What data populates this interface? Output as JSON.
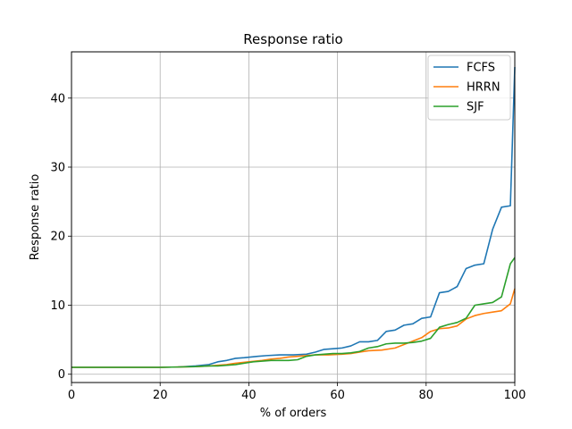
{
  "chart_data": {
    "type": "line",
    "title": "Response ratio",
    "xlabel": "% of orders",
    "ylabel": "Response ratio",
    "xlim": [
      0,
      100
    ],
    "ylim": [
      -1.2,
      46.7
    ],
    "xticks": [
      0,
      20,
      40,
      60,
      80,
      100
    ],
    "yticks": [
      0,
      10,
      20,
      30,
      40
    ],
    "grid": true,
    "legend_position": "top-right",
    "series": [
      {
        "name": "FCFS",
        "color": "#1f77b4",
        "points": [
          [
            0,
            1.0
          ],
          [
            10,
            1.0
          ],
          [
            20,
            1.0
          ],
          [
            24,
            1.05
          ],
          [
            28,
            1.2
          ],
          [
            31,
            1.4
          ],
          [
            33,
            1.8
          ],
          [
            35,
            2.0
          ],
          [
            37,
            2.3
          ],
          [
            39,
            2.4
          ],
          [
            42,
            2.6
          ],
          [
            44,
            2.7
          ],
          [
            47,
            2.8
          ],
          [
            50,
            2.8
          ],
          [
            53,
            2.9
          ],
          [
            55,
            3.2
          ],
          [
            57,
            3.6
          ],
          [
            59,
            3.7
          ],
          [
            61,
            3.8
          ],
          [
            63,
            4.1
          ],
          [
            65,
            4.7
          ],
          [
            67,
            4.7
          ],
          [
            69,
            4.9
          ],
          [
            71,
            6.2
          ],
          [
            73,
            6.4
          ],
          [
            75,
            7.1
          ],
          [
            77,
            7.3
          ],
          [
            79,
            8.1
          ],
          [
            81,
            8.3
          ],
          [
            83,
            11.8
          ],
          [
            85,
            12.0
          ],
          [
            87,
            12.7
          ],
          [
            89,
            15.3
          ],
          [
            91,
            15.8
          ],
          [
            93,
            16.0
          ],
          [
            95,
            21.0
          ],
          [
            97,
            24.2
          ],
          [
            99,
            24.4
          ],
          [
            100,
            44.5
          ]
        ]
      },
      {
        "name": "HRRN",
        "color": "#ff7f0e",
        "points": [
          [
            0,
            1.0
          ],
          [
            10,
            1.0
          ],
          [
            20,
            1.0
          ],
          [
            24,
            1.05
          ],
          [
            28,
            1.1
          ],
          [
            31,
            1.2
          ],
          [
            33,
            1.3
          ],
          [
            35,
            1.4
          ],
          [
            37,
            1.6
          ],
          [
            40,
            1.8
          ],
          [
            43,
            2.0
          ],
          [
            45,
            2.2
          ],
          [
            47,
            2.3
          ],
          [
            49,
            2.5
          ],
          [
            51,
            2.6
          ],
          [
            53,
            2.7
          ],
          [
            55,
            2.8
          ],
          [
            58,
            2.8
          ],
          [
            61,
            2.9
          ],
          [
            63,
            3.0
          ],
          [
            65,
            3.2
          ],
          [
            67,
            3.4
          ],
          [
            70,
            3.5
          ],
          [
            73,
            3.8
          ],
          [
            75,
            4.3
          ],
          [
            77,
            4.8
          ],
          [
            79,
            5.3
          ],
          [
            81,
            6.2
          ],
          [
            83,
            6.6
          ],
          [
            85,
            6.7
          ],
          [
            87,
            7.0
          ],
          [
            89,
            8.0
          ],
          [
            91,
            8.5
          ],
          [
            93,
            8.8
          ],
          [
            95,
            9.0
          ],
          [
            97,
            9.2
          ],
          [
            99,
            10.2
          ],
          [
            100,
            12.4
          ]
        ]
      },
      {
        "name": "SJF",
        "color": "#2ca02c",
        "points": [
          [
            0,
            1.0
          ],
          [
            10,
            1.0
          ],
          [
            20,
            1.0
          ],
          [
            24,
            1.05
          ],
          [
            28,
            1.1
          ],
          [
            31,
            1.2
          ],
          [
            33,
            1.2
          ],
          [
            35,
            1.3
          ],
          [
            37,
            1.4
          ],
          [
            39,
            1.6
          ],
          [
            41,
            1.8
          ],
          [
            43,
            1.9
          ],
          [
            45,
            2.0
          ],
          [
            47,
            2.0
          ],
          [
            49,
            2.0
          ],
          [
            51,
            2.1
          ],
          [
            53,
            2.6
          ],
          [
            55,
            2.8
          ],
          [
            57,
            2.9
          ],
          [
            59,
            3.0
          ],
          [
            61,
            3.0
          ],
          [
            63,
            3.1
          ],
          [
            65,
            3.3
          ],
          [
            67,
            3.8
          ],
          [
            69,
            4.0
          ],
          [
            71,
            4.4
          ],
          [
            73,
            4.5
          ],
          [
            75,
            4.5
          ],
          [
            77,
            4.6
          ],
          [
            79,
            4.8
          ],
          [
            81,
            5.2
          ],
          [
            83,
            6.8
          ],
          [
            85,
            7.2
          ],
          [
            87,
            7.5
          ],
          [
            89,
            8.1
          ],
          [
            91,
            10.0
          ],
          [
            93,
            10.2
          ],
          [
            95,
            10.4
          ],
          [
            97,
            11.2
          ],
          [
            99,
            16.0
          ],
          [
            100,
            16.9
          ]
        ]
      }
    ]
  }
}
